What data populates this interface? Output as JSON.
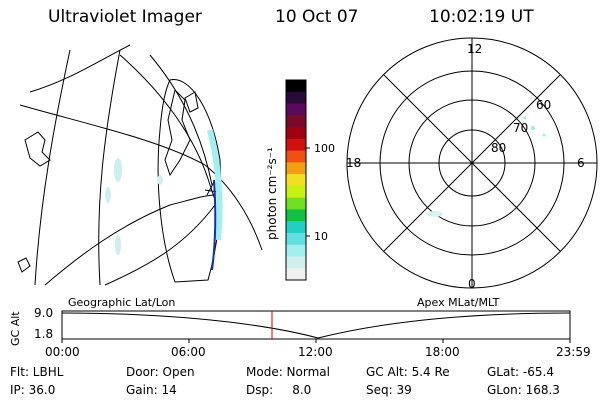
{
  "header": {
    "instrument": "Ultraviolet Imager",
    "date": "10 Oct 07",
    "time": "10:02:19 UT"
  },
  "colorbar": {
    "unit_label": "photon cm⁻²s⁻¹",
    "ticks": [
      "100",
      "10"
    ],
    "colors": [
      "#000000",
      "#2a0a3a",
      "#5a0a5a",
      "#7a0a2a",
      "#a00010",
      "#d01010",
      "#f05010",
      "#f0a010",
      "#f0e020",
      "#c8f010",
      "#70e020",
      "#10c040",
      "#20d0c0",
      "#60e0e0",
      "#a0f0f0",
      "#d0f0f0",
      "#f0f0f0"
    ]
  },
  "polar_plot": {
    "mlt_labels": [
      "12",
      "18",
      "6",
      "0"
    ],
    "lat_labels": [
      "60",
      "70",
      "80"
    ]
  },
  "timeline": {
    "y_axis_label": "GC Alt",
    "left_header": "Geographic Lat/Lon",
    "right_header": "Apex MLat/MLT",
    "y_ticks": [
      "9.0",
      "1.8"
    ],
    "x_ticks": [
      "00:00",
      "06:00",
      "12:00",
      "18:00",
      "23:59"
    ],
    "current_time": "10:02:19",
    "marker_color": "#d00000"
  },
  "status": {
    "flt": "Flt: LBHL",
    "door": "Door: Open",
    "mode": "Mode: Normal",
    "gc_alt": "GC Alt: 5.4 Re",
    "glat": "GLat: -65.4",
    "ip": "IP: 36.0",
    "gain": "Gain: 14",
    "dsp": "Dsp:     8.0",
    "seq": "Seq: 39",
    "glon": "GLon: 168.3"
  }
}
